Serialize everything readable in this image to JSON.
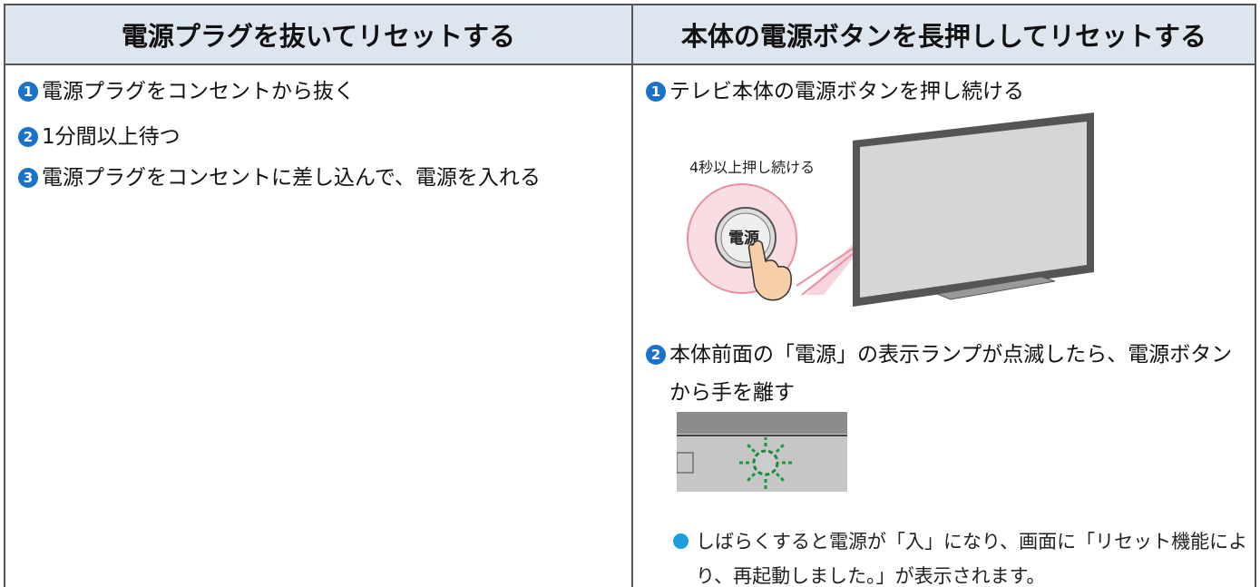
{
  "table": {
    "columns": [
      {
        "header": "電源プラグを抜いてリセットする",
        "steps": [
          {
            "marker": "1",
            "text": "電源プラグをコンセントから抜く"
          },
          {
            "marker": "2",
            "text": "1分間以上待つ"
          },
          {
            "marker": "3",
            "text": "電源プラグをコンセントに差し込んで、電源を入れる"
          }
        ]
      },
      {
        "header": "本体の電源ボタンを長押ししてリセットする",
        "steps": [
          {
            "marker": "1",
            "text": "テレビ本体の電源ボタンを押し続ける"
          },
          {
            "marker": "2",
            "text": "本体前面の「電源」の表示ランプが点滅したら、電源ボタンから手を離す"
          }
        ],
        "illustration": {
          "caption": "4秒以上押し続ける",
          "button_label": "電源"
        },
        "note": "しばらくすると電源が「入」になり、画面に「リセット機能により、再起動しました。」が表示されます。"
      }
    ]
  }
}
